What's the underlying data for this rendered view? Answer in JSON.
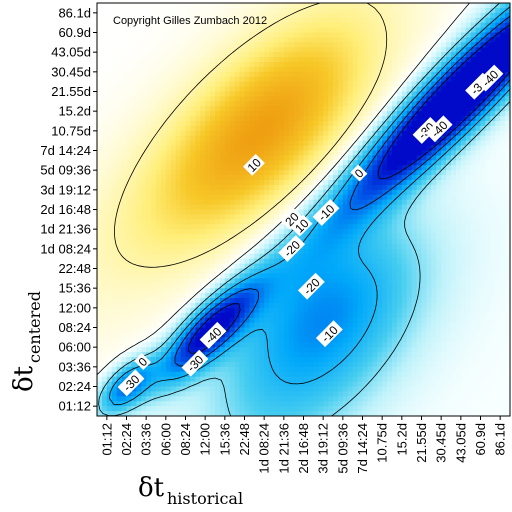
{
  "chart_data": {
    "type": "heatmap",
    "copyright": "Copyright Gilles Zumbach 2012",
    "x_ticks": [
      "01:12",
      "02:24",
      "03:36",
      "06:00",
      "08:24",
      "12:00",
      "15:36",
      "22:48",
      "1d 08:24",
      "1d 21:36",
      "2d 16:48",
      "3d 19:12",
      "5d 09:36",
      "7d 14:24",
      "10.75d",
      "15.2d",
      "21.55d",
      "30.45d",
      "43.05d",
      "60.9d",
      "86.1d"
    ],
    "y_ticks": [
      "86.1d",
      "60.9d",
      "43.05d",
      "30.45d",
      "21.55d",
      "15.2d",
      "10.75d",
      "7d 14:24",
      "5d 09:36",
      "3d 19:12",
      "2d 16:48",
      "1d 21:36",
      "1d 08:24",
      "22:48",
      "15:36",
      "12:00",
      "08:24",
      "06:00",
      "03:36",
      "02:24",
      "01:12"
    ],
    "xlabel_symbol": "δt",
    "xlabel_subscript": "historical",
    "ylabel_symbol": "δt",
    "ylabel_subscript": "centered",
    "contour_levels": [
      "10",
      "0",
      "-10",
      "-20",
      "-30",
      "-40"
    ],
    "contour_labels": [
      {
        "text": "10",
        "x": 9,
        "y": 14.7
      },
      {
        "text": "20",
        "x": 11.3,
        "y": 11.4
      },
      {
        "text": "10",
        "x": 11.9,
        "y": 11.0
      },
      {
        "text": "0",
        "x": 15.4,
        "y": 14.2
      },
      {
        "text": "-10",
        "x": 13.4,
        "y": 11.8
      },
      {
        "text": "-20",
        "x": 11.3,
        "y": 9.6
      },
      {
        "text": "-30",
        "x": 19.5,
        "y": 16.8
      },
      {
        "text": "-40",
        "x": 20.3,
        "y": 16.9
      },
      {
        "text": "-30",
        "x": 22.7,
        "y": 19.5
      },
      {
        "text": "-40",
        "x": 23.4,
        "y": 20.0
      },
      {
        "text": "-20",
        "x": 12.5,
        "y": 7.3
      },
      {
        "text": "-10",
        "x": 13.6,
        "y": 4.4
      },
      {
        "text": "-40",
        "x": 6.5,
        "y": 4.3
      },
      {
        "text": "-30",
        "x": 5.4,
        "y": 2.6
      },
      {
        "text": "0",
        "x": 2.2,
        "y": 2.7
      },
      {
        "text": "-30",
        "x": 1.5,
        "y": 1.4
      }
    ],
    "color_scale": {
      "max": "#f2a91a",
      "mid_high": "#fff8b0",
      "zero": "#f5ffff",
      "mid_low": "#00b4ff",
      "min": "#0010c8"
    }
  }
}
